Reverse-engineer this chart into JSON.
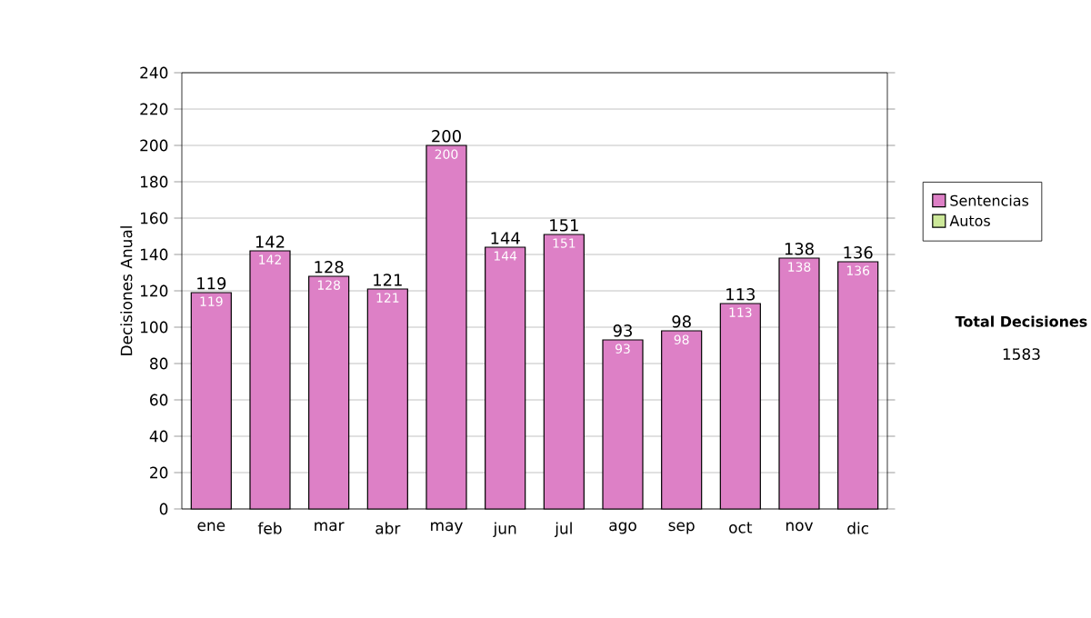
{
  "chart_data": {
    "type": "bar",
    "ylabel": "Decisiones Anual",
    "categories": [
      "ene",
      "feb",
      "mar",
      "abr",
      "may",
      "jun",
      "jul",
      "ago",
      "sep",
      "oct",
      "nov",
      "dic"
    ],
    "series": [
      {
        "name": "Sentencias",
        "color": "#dd80c6",
        "values": [
          119,
          142,
          128,
          121,
          200,
          144,
          151,
          93,
          98,
          113,
          138,
          136
        ]
      },
      {
        "name": "Autos",
        "color": "#cce899",
        "values": [
          null,
          null,
          null,
          null,
          null,
          null,
          null,
          null,
          null,
          null,
          null,
          null
        ]
      }
    ],
    "totals": [
      "119",
      "142",
      "128",
      "121",
      "200",
      "144",
      "151",
      "93",
      "98",
      "113",
      "138",
      "136"
    ],
    "data_labels": true,
    "ylim": [
      0,
      240
    ],
    "yticks": [
      0,
      20,
      40,
      60,
      80,
      100,
      120,
      140,
      160,
      180,
      200,
      220,
      240
    ],
    "grid": "y",
    "legend": "right",
    "annotations": [
      "Total Decisiones",
      "1583"
    ]
  }
}
